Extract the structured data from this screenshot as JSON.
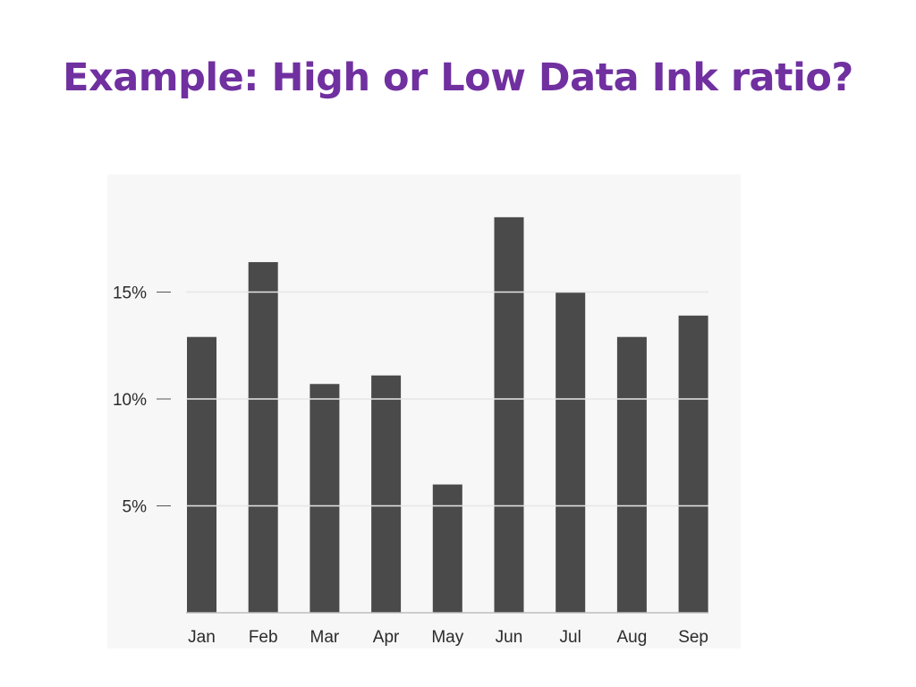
{
  "slide": {
    "title": "Example: High or Low Data Ink ratio?"
  },
  "colors": {
    "title": "#7030a0",
    "bar": "#4a4a4a",
    "gridline": "#e6e6e6",
    "axis": "#bdbdbd",
    "panel": "#f7f7f7"
  },
  "chart_data": {
    "type": "bar",
    "categories": [
      "Jan",
      "Feb",
      "Mar",
      "Apr",
      "May",
      "Jun",
      "Jul",
      "Aug",
      "Sep"
    ],
    "values": [
      12.9,
      16.4,
      10.7,
      11.1,
      6.0,
      18.5,
      15.0,
      12.9,
      13.9
    ],
    "y_ticks": [
      5,
      10,
      15
    ],
    "y_tick_labels": [
      "5%",
      "10%",
      "15%"
    ],
    "ylim": [
      0,
      20
    ],
    "grid": "horizontal white lines through bars at tick values",
    "legend": "none"
  }
}
